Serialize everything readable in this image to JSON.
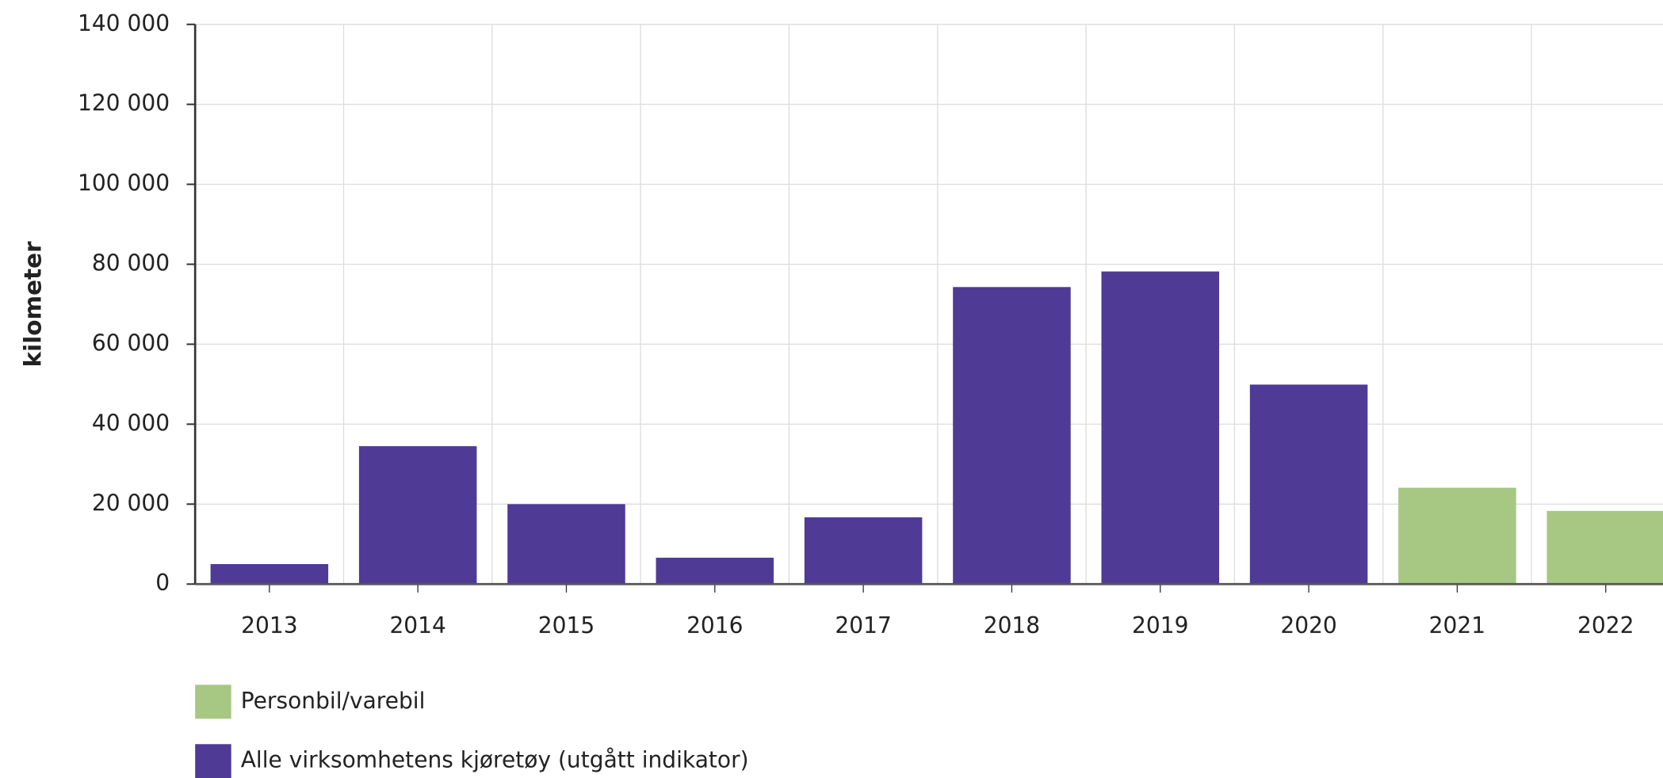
{
  "chart_data": {
    "type": "bar",
    "y_label": "kilometer",
    "categories": [
      "2013",
      "2014",
      "2015",
      "2016",
      "2017",
      "2018",
      "2019",
      "2020",
      "2021",
      "2022"
    ],
    "series": [
      {
        "name": "Personbil/varebil",
        "color": "#a6c882",
        "values": [
          null,
          null,
          null,
          null,
          null,
          null,
          null,
          null,
          24100,
          18300
        ]
      },
      {
        "name": "Alle virksomhetens kjøretøy (utgått indikator)",
        "color": "#4f3a96",
        "values": [
          5000,
          34500,
          20000,
          6600,
          16700,
          74300,
          78200,
          49900,
          null,
          null
        ]
      }
    ],
    "ylim": [
      0,
      140000
    ],
    "yticks": [
      0,
      {
        "value": 20000,
        "label": "20 000"
      },
      {
        "value": 40000,
        "label": "40 000"
      },
      {
        "value": 60000,
        "label": "60 000"
      },
      {
        "value": 80000,
        "label": "80 000"
      },
      {
        "value": 100000,
        "label": "100 000"
      },
      {
        "value": 120000,
        "label": "120 000"
      },
      {
        "value": 140000,
        "label": "140 000"
      }
    ],
    "grid": true
  }
}
